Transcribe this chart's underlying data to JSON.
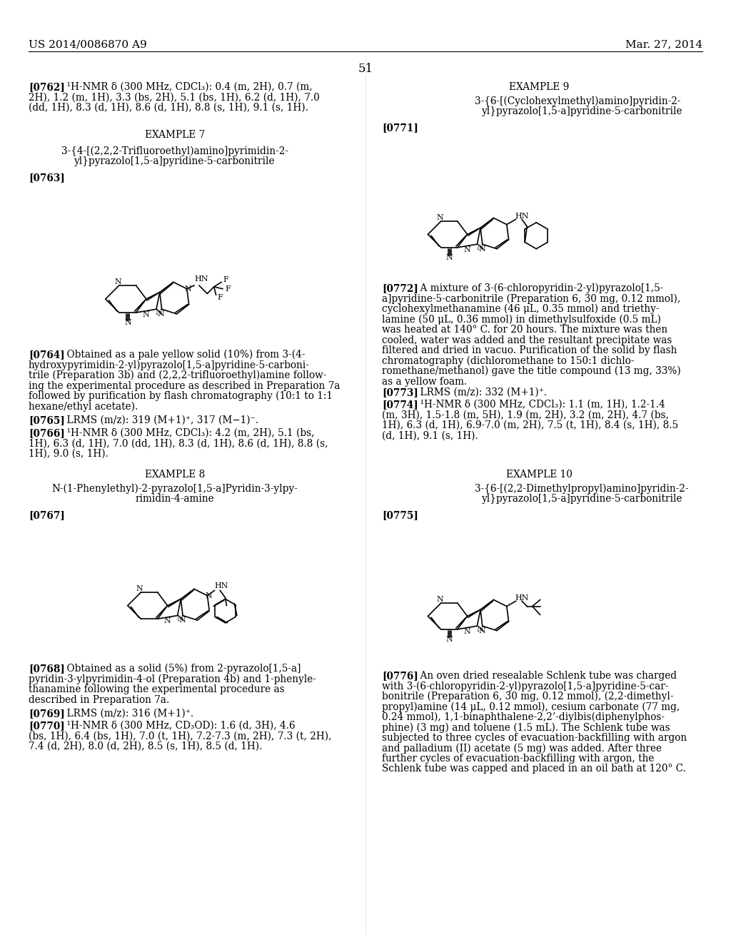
{
  "page_header_left": "US 2014/0086870 A9",
  "page_header_right": "Mar. 27, 2014",
  "page_number": "51",
  "background_color": "#ffffff",
  "figsize": [
    10.24,
    13.2
  ],
  "dpi": 100
}
